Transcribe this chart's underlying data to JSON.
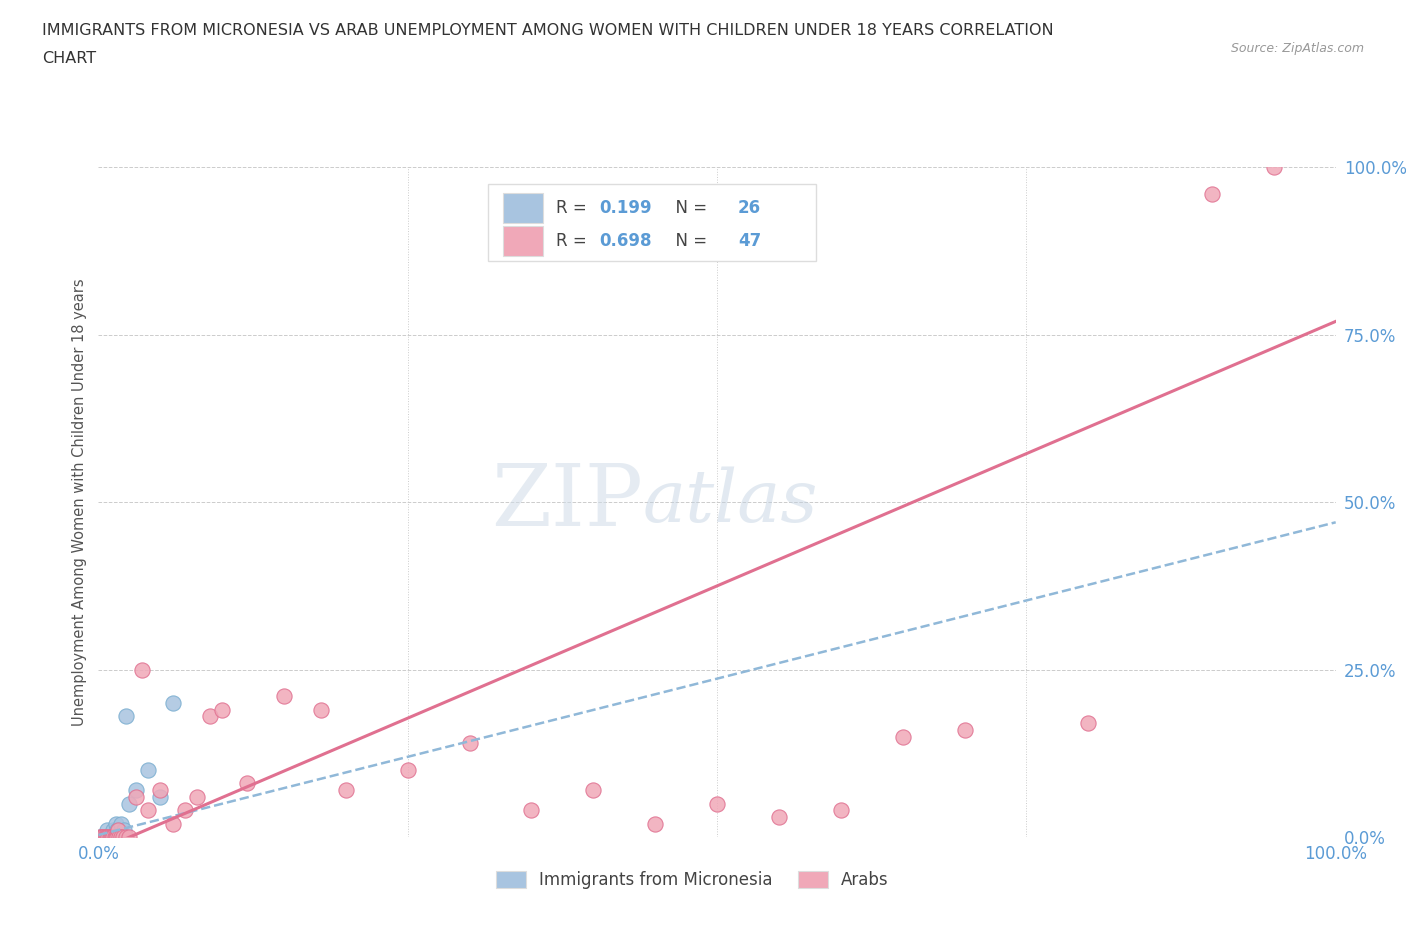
{
  "title_line1": "IMMIGRANTS FROM MICRONESIA VS ARAB UNEMPLOYMENT AMONG WOMEN WITH CHILDREN UNDER 18 YEARS CORRELATION",
  "title_line2": "CHART",
  "source": "Source: ZipAtlas.com",
  "ylabel": "Unemployment Among Women with Children Under 18 years",
  "xlim": [
    0,
    1.0
  ],
  "ylim": [
    0,
    1.0
  ],
  "xticks": [
    0,
    0.25,
    0.5,
    0.75,
    1.0
  ],
  "xticklabels": [
    "0.0%",
    "",
    "",
    "",
    "100.0%"
  ],
  "yticks": [
    0,
    0.25,
    0.5,
    0.75,
    1.0
  ],
  "yticklabels": [
    "0.0%",
    "25.0%",
    "50.0%",
    "75.0%",
    "100.0%"
  ],
  "blue_R": 0.199,
  "blue_N": 26,
  "pink_R": 0.698,
  "pink_N": 47,
  "blue_color": "#a8c4e0",
  "blue_edge_color": "#7aaed0",
  "pink_color": "#f0a8b8",
  "pink_edge_color": "#e07090",
  "pink_trend_color": "#e07090",
  "blue_trend_color": "#90b8d8",
  "blue_label": "Immigrants from Micronesia",
  "pink_label": "Arabs",
  "watermark_ZIP": "ZIP",
  "watermark_atlas": "atlas",
  "blue_scatter_x": [
    0.001,
    0.002,
    0.003,
    0.004,
    0.005,
    0.006,
    0.007,
    0.008,
    0.009,
    0.01,
    0.011,
    0.012,
    0.013,
    0.014,
    0.015,
    0.016,
    0.017,
    0.018,
    0.02,
    0.021,
    0.022,
    0.025,
    0.03,
    0.04,
    0.05,
    0.06
  ],
  "blue_scatter_y": [
    0.0,
    0.0,
    0.0,
    0.0,
    0.0,
    0.0,
    0.01,
    0.0,
    0.0,
    0.0,
    0.0,
    0.01,
    0.0,
    0.02,
    0.01,
    0.0,
    0.0,
    0.02,
    0.0,
    0.01,
    0.18,
    0.05,
    0.07,
    0.1,
    0.06,
    0.2
  ],
  "pink_scatter_x": [
    0.001,
    0.002,
    0.003,
    0.004,
    0.005,
    0.006,
    0.007,
    0.008,
    0.009,
    0.01,
    0.011,
    0.012,
    0.013,
    0.014,
    0.015,
    0.016,
    0.017,
    0.018,
    0.02,
    0.022,
    0.025,
    0.03,
    0.035,
    0.04,
    0.05,
    0.06,
    0.07,
    0.08,
    0.09,
    0.1,
    0.12,
    0.15,
    0.18,
    0.2,
    0.25,
    0.3,
    0.35,
    0.4,
    0.45,
    0.5,
    0.55,
    0.6,
    0.65,
    0.7,
    0.8,
    0.9,
    0.95
  ],
  "pink_scatter_y": [
    0.0,
    0.0,
    0.0,
    0.0,
    0.0,
    0.0,
    0.0,
    0.0,
    0.0,
    0.0,
    0.0,
    0.0,
    0.0,
    0.0,
    0.0,
    0.01,
    0.0,
    0.0,
    0.0,
    0.0,
    0.0,
    0.06,
    0.25,
    0.04,
    0.07,
    0.02,
    0.04,
    0.06,
    0.18,
    0.19,
    0.08,
    0.21,
    0.19,
    0.07,
    0.1,
    0.14,
    0.04,
    0.07,
    0.02,
    0.05,
    0.03,
    0.04,
    0.15,
    0.16,
    0.17,
    0.96,
    1.0
  ],
  "blue_trendline_x": [
    0.0,
    1.0
  ],
  "blue_trendline_y": [
    0.003,
    0.47
  ],
  "pink_trendline_x": [
    0.0,
    1.0
  ],
  "pink_trendline_y": [
    -0.02,
    0.77
  ],
  "grid_color": "#cccccc",
  "title_color": "#333333",
  "tick_color": "#5b9bd5",
  "source_color": "#999999",
  "ylabel_color": "#555555",
  "bg_color": "#ffffff",
  "legend_box_color": "#ffffff",
  "legend_border_color": "#dddddd"
}
